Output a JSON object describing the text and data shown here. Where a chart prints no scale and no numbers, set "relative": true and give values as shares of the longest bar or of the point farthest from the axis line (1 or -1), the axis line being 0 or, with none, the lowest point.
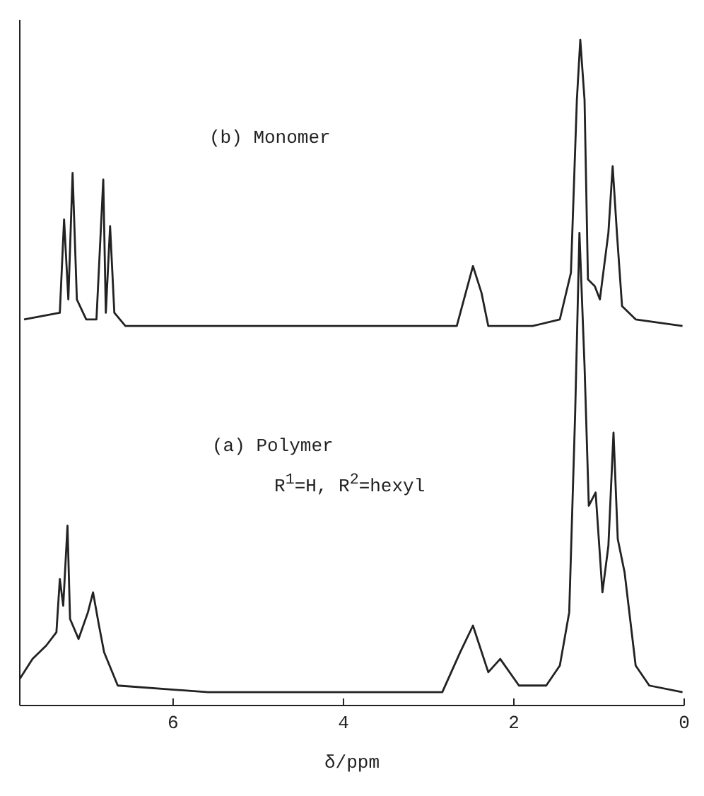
{
  "chart_data": {
    "type": "line",
    "relative": true,
    "xlabel": "δ/ppm",
    "xlim": [
      7.8,
      0
    ],
    "xticks": [
      6,
      4,
      2,
      0
    ],
    "marker": "none",
    "line_style": "solid",
    "annotations": [
      "(b) Monomer",
      "(a) Polymer",
      "R$^{1}$=H, R$^{2}$=hexyl"
    ],
    "series": [
      {
        "color": "#222222",
        "x": [
          7.75,
          7.33,
          7.28,
          7.23,
          7.18,
          7.13,
          7.02,
          6.9,
          6.82,
          6.79,
          6.74,
          6.69,
          6.56,
          4.78,
          2.67,
          2.48,
          2.38,
          2.3,
          1.78,
          1.46,
          1.33,
          1.26,
          1.22,
          1.17,
          1.13,
          1.05,
          0.99,
          0.89,
          0.84,
          0.79,
          0.73,
          0.57,
          0.02
        ],
        "values": [
          0.58,
          0.59,
          0.73,
          0.61,
          0.8,
          0.61,
          0.58,
          0.58,
          0.79,
          0.59,
          0.72,
          0.59,
          0.57,
          0.57,
          0.57,
          0.66,
          0.62,
          0.57,
          0.57,
          0.58,
          0.65,
          0.91,
          1,
          0.91,
          0.64,
          0.63,
          0.61,
          0.71,
          0.81,
          0.71,
          0.6,
          0.58,
          0.57
        ]
      },
      {
        "color": "#222222",
        "x": [
          7.8,
          7.65,
          7.49,
          7.37,
          7.33,
          7.29,
          7.24,
          7.21,
          7.11,
          7.0,
          6.94,
          6.87,
          6.81,
          6.65,
          5.59,
          2.84,
          2.63,
          2.48,
          2.3,
          2.16,
          1.94,
          1.62,
          1.46,
          1.35,
          1.28,
          1.23,
          1.17,
          1.12,
          1.04,
          0.96,
          0.89,
          0.83,
          0.78,
          0.7,
          0.57,
          0.41,
          0.02
        ],
        "values": [
          0.04,
          0.07,
          0.09,
          0.11,
          0.19,
          0.15,
          0.27,
          0.13,
          0.1,
          0.14,
          0.17,
          0.12,
          0.08,
          0.03,
          0.02,
          0.02,
          0.08,
          0.12,
          0.05,
          0.07,
          0.03,
          0.03,
          0.06,
          0.14,
          0.44,
          0.71,
          0.51,
          0.3,
          0.32,
          0.17,
          0.24,
          0.41,
          0.25,
          0.2,
          0.06,
          0.03,
          0.02
        ]
      }
    ]
  }
}
